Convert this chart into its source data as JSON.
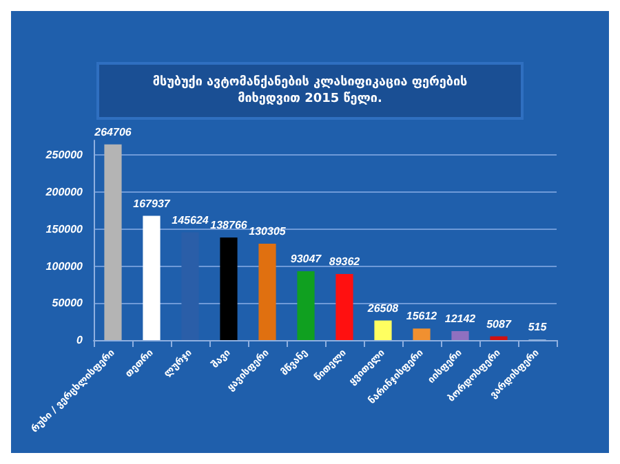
{
  "chart_data": {
    "type": "bar",
    "title": "მსუბუქი ავტომანქანების კლასიფიკაცია ფერების\nმიხედვით 2015 წელი.",
    "categories": [
      "რუხი / ვერცხლისფერი",
      "თეთრი",
      "ლურჯი",
      "შავი",
      "ყავისფერი",
      "მწვანე",
      "წითელი",
      "ყვითელი",
      "ნარინჯისფერი",
      "იისფერი",
      "ბორდოსფერი",
      "ვარდისფერი"
    ],
    "values": [
      264706,
      167937,
      145624,
      138766,
      130305,
      93047,
      89362,
      26508,
      15612,
      12142,
      5087,
      515
    ],
    "colors": [
      "#b4b4b4",
      "#ffffff",
      "#2a5ea8",
      "#000000",
      "#e07010",
      "#10a020",
      "#ff1010",
      "#ffff60",
      "#f09030",
      "#9070c0",
      "#d01010",
      "#e0e8f0"
    ],
    "ylim": [
      0,
      270000
    ],
    "yticks": [
      0,
      50000,
      100000,
      150000,
      200000,
      250000
    ],
    "grid": "y",
    "data_labels": true
  }
}
